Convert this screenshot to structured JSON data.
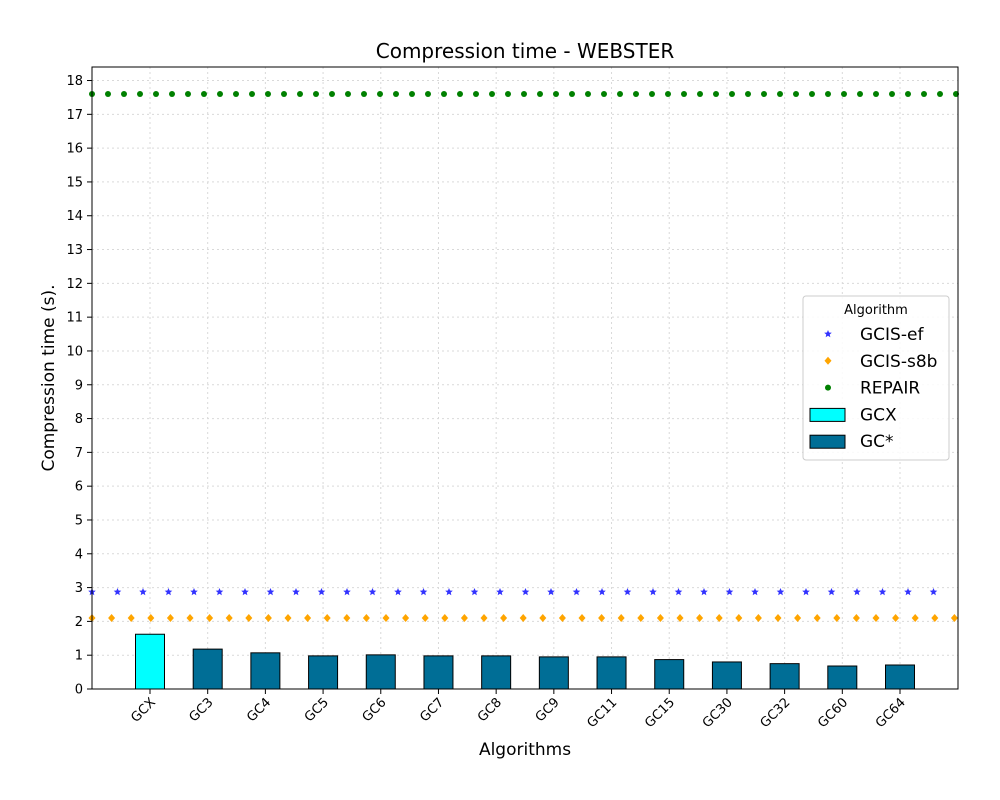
{
  "chart_data": {
    "type": "bar",
    "title": "Compression time -  WEBSTER",
    "xlabel": "Algorithms",
    "ylabel": "Compression time (s).",
    "ylim": [
      0,
      18.4
    ],
    "yticks": [
      0,
      1,
      2,
      3,
      4,
      5,
      6,
      7,
      8,
      9,
      10,
      11,
      12,
      13,
      14,
      15,
      16,
      17,
      18
    ],
    "grid": true,
    "legend_title": "Algorithm",
    "legend_position": "center-right",
    "categories": [
      "GCX",
      "GC3",
      "GC4",
      "GC5",
      "GC6",
      "GC7",
      "GC8",
      "GC9",
      "GC11",
      "GC15",
      "GC30",
      "GC32",
      "GC60",
      "GC64"
    ],
    "bars": [
      {
        "name": "GCX",
        "color": "#00ffff",
        "values": [
          1.62,
          null,
          null,
          null,
          null,
          null,
          null,
          null,
          null,
          null,
          null,
          null,
          null,
          null
        ]
      },
      {
        "name": "GC*",
        "color": "#006e96",
        "values": [
          null,
          1.18,
          1.07,
          0.98,
          1.01,
          0.98,
          0.98,
          0.95,
          0.95,
          0.87,
          0.8,
          0.75,
          0.68,
          0.71
        ]
      }
    ],
    "reference_lines": [
      {
        "name": "GCIS-ef",
        "value": 2.87,
        "color": "#3333ff",
        "marker": "star"
      },
      {
        "name": "GCIS-s8b",
        "value": 2.1,
        "color": "#ffa500",
        "marker": "diamond"
      },
      {
        "name": "REPAIR",
        "value": 17.6,
        "color": "#008000",
        "marker": "circle"
      }
    ]
  }
}
